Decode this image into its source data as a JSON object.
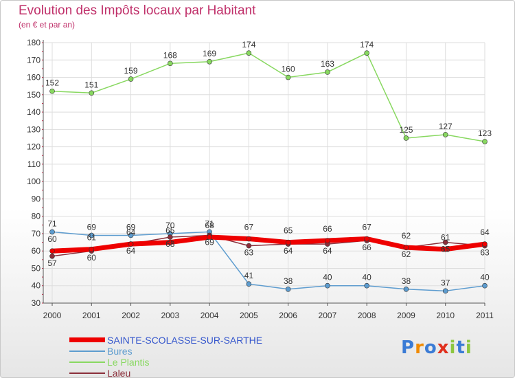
{
  "header": {
    "title": "Evolution des Impôts locaux par Habitant",
    "subtitle": "(en € et par an)"
  },
  "logo": {
    "text": "Proxiti"
  },
  "colors": {
    "title": "#c0306a",
    "axis_text": "#333333",
    "grid": "#dddddd",
    "axis": "#555555"
  },
  "chart_data": {
    "type": "line",
    "title": "Evolution des Impôts locaux par Habitant",
    "subtitle": "(en € et par an)",
    "xlabel": "",
    "ylabel": "",
    "ylim": [
      30,
      180
    ],
    "yticks": [
      30,
      40,
      50,
      60,
      70,
      80,
      90,
      100,
      110,
      120,
      130,
      140,
      150,
      160,
      170,
      180
    ],
    "grid": true,
    "legend_position": "bottom-left",
    "x": [
      "2000",
      "2001",
      "2002",
      "2003",
      "2004",
      "2005",
      "2006",
      "2007",
      "2008",
      "2009",
      "2010",
      "2011"
    ],
    "series": [
      {
        "name": "SAINTE-SCOLASSE-SUR-SARTHE",
        "color": "#ee0000",
        "values": [
          60,
          61,
          64,
          65,
          68,
          67,
          65,
          66,
          67,
          62,
          61,
          64
        ]
      },
      {
        "name": "Bures",
        "color": "#5d9ccf",
        "values": [
          71,
          69,
          69,
          70,
          71,
          41,
          38,
          40,
          40,
          38,
          37,
          40
        ]
      },
      {
        "name": "Le Plantis",
        "color": "#88d860",
        "values": [
          152,
          151,
          159,
          168,
          169,
          174,
          160,
          163,
          174,
          125,
          127,
          123
        ]
      },
      {
        "name": "Laleu",
        "color": "#8b2e3a",
        "values": [
          57,
          60,
          64,
          68,
          69,
          63,
          64,
          64,
          66,
          62,
          65,
          63
        ]
      }
    ]
  }
}
